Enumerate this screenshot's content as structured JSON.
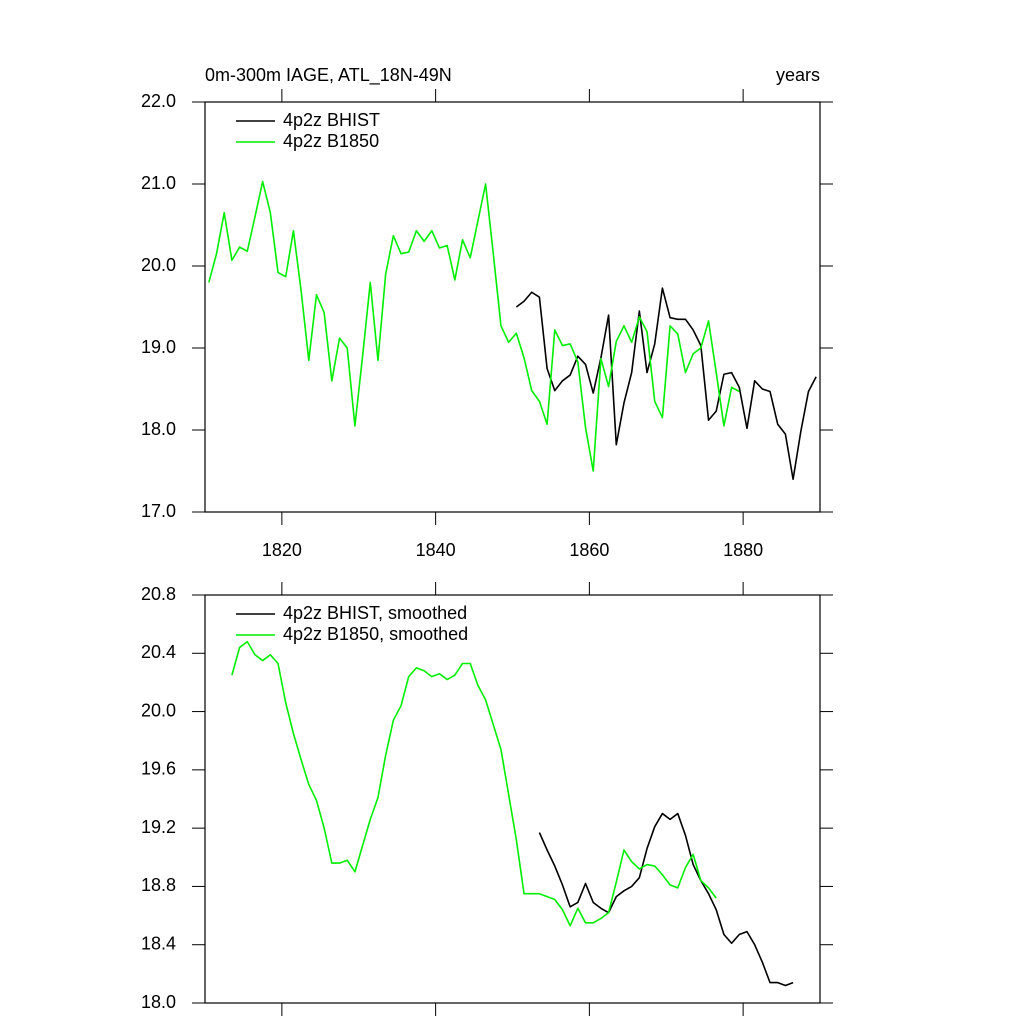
{
  "chart_data": [
    {
      "type": "line",
      "title": "0m-300m IAGE, ATL_18N-49N",
      "subtitle": "years",
      "x": [
        1810.5,
        1811.5,
        1812.5,
        1813.5,
        1814.5,
        1815.5,
        1816.5,
        1817.5,
        1818.5,
        1819.5,
        1820.5,
        1821.5,
        1822.5,
        1823.5,
        1824.5,
        1825.5,
        1826.5,
        1827.5,
        1828.5,
        1829.5,
        1830.5,
        1831.5,
        1832.5,
        1833.5,
        1834.5,
        1835.5,
        1836.5,
        1837.5,
        1838.5,
        1839.5,
        1840.5,
        1841.5,
        1842.5,
        1843.5,
        1844.5,
        1845.5,
        1846.5,
        1847.5,
        1848.5,
        1849.5,
        1850.5,
        1851.5,
        1852.5,
        1853.5,
        1854.5,
        1855.5,
        1856.5,
        1857.5,
        1858.5,
        1859.5,
        1860.5,
        1861.5,
        1862.5,
        1863.5,
        1864.5,
        1865.5,
        1866.5,
        1867.5,
        1868.5,
        1869.5,
        1870.5,
        1871.5,
        1872.5,
        1873.5,
        1874.5,
        1875.5,
        1876.5,
        1877.5,
        1878.5,
        1879.5,
        1880.5,
        1881.5,
        1882.5,
        1883.5,
        1884.5,
        1885.5,
        1886.5,
        1887.5,
        1888.5,
        1889.5
      ],
      "series": [
        {
          "name": "4p2z BHIST",
          "color": "#000000",
          "values": [
            null,
            null,
            null,
            null,
            null,
            null,
            null,
            null,
            null,
            null,
            null,
            null,
            null,
            null,
            null,
            null,
            null,
            null,
            null,
            null,
            null,
            null,
            null,
            null,
            null,
            null,
            null,
            null,
            null,
            null,
            null,
            null,
            null,
            null,
            null,
            null,
            null,
            null,
            null,
            null,
            19.5,
            19.57,
            19.68,
            19.62,
            18.75,
            18.48,
            18.6,
            18.67,
            18.9,
            18.8,
            18.45,
            18.88,
            19.4,
            17.82,
            18.33,
            18.7,
            19.45,
            18.7,
            19.05,
            19.73,
            19.37,
            19.35,
            19.35,
            19.22,
            19.03,
            18.12,
            18.23,
            18.68,
            18.7,
            18.52,
            18.02,
            18.6,
            18.5,
            18.47,
            18.07,
            17.95,
            17.4,
            17.98,
            18.47,
            18.65
          ]
        },
        {
          "name": "4p2z B1850",
          "color": "#00ee00",
          "values": [
            19.8,
            20.15,
            20.65,
            20.07,
            20.23,
            20.18,
            20.6,
            21.03,
            20.65,
            19.92,
            19.87,
            20.43,
            19.7,
            18.85,
            19.65,
            19.43,
            18.6,
            19.12,
            19.0,
            18.05,
            18.9,
            19.8,
            18.85,
            19.9,
            20.37,
            20.15,
            20.17,
            20.43,
            20.3,
            20.43,
            20.22,
            20.25,
            19.83,
            20.32,
            20.1,
            20.55,
            21.0,
            20.15,
            19.27,
            19.07,
            19.18,
            18.88,
            18.48,
            18.35,
            18.07,
            19.22,
            19.03,
            19.05,
            18.83,
            18.03,
            17.5,
            18.87,
            18.53,
            19.08,
            19.27,
            19.07,
            19.38,
            19.2,
            18.35,
            18.15,
            19.27,
            19.17,
            18.7,
            18.93,
            19.0,
            19.33,
            18.7,
            18.05,
            18.52,
            18.47,
            null,
            null,
            null,
            null,
            null,
            null,
            null,
            null,
            null,
            null
          ]
        }
      ],
      "xlim": [
        1810,
        1890
      ],
      "xticks": [
        1820,
        1840,
        1860,
        1880
      ],
      "show_xtick_labels": true,
      "ylim": [
        17,
        22
      ],
      "yticks": [
        {
          "value": 17,
          "label": "17.0"
        },
        {
          "value": 18,
          "label": "18.0"
        },
        {
          "value": 19,
          "label": "19.0"
        },
        {
          "value": 20,
          "label": "20.0"
        },
        {
          "value": 21,
          "label": "21.0"
        },
        {
          "value": 22,
          "label": "22.0"
        }
      ],
      "legend": "upper left"
    },
    {
      "type": "line",
      "x": [
        1810.5,
        1811.5,
        1812.5,
        1813.5,
        1814.5,
        1815.5,
        1816.5,
        1817.5,
        1818.5,
        1819.5,
        1820.5,
        1821.5,
        1822.5,
        1823.5,
        1824.5,
        1825.5,
        1826.5,
        1827.5,
        1828.5,
        1829.5,
        1830.5,
        1831.5,
        1832.5,
        1833.5,
        1834.5,
        1835.5,
        1836.5,
        1837.5,
        1838.5,
        1839.5,
        1840.5,
        1841.5,
        1842.5,
        1843.5,
        1844.5,
        1845.5,
        1846.5,
        1847.5,
        1848.5,
        1849.5,
        1850.5,
        1851.5,
        1852.5,
        1853.5,
        1854.5,
        1855.5,
        1856.5,
        1857.5,
        1858.5,
        1859.5,
        1860.5,
        1861.5,
        1862.5,
        1863.5,
        1864.5,
        1865.5,
        1866.5,
        1867.5,
        1868.5,
        1869.5,
        1870.5,
        1871.5,
        1872.5,
        1873.5,
        1874.5,
        1875.5,
        1876.5,
        1877.5,
        1878.5,
        1879.5,
        1880.5,
        1881.5,
        1882.5,
        1883.5,
        1884.5,
        1885.5,
        1886.5,
        1887.5,
        1888.5,
        1889.5
      ],
      "series": [
        {
          "name": "4p2z BHIST, smoothed",
          "color": "#000000",
          "values": [
            null,
            null,
            null,
            null,
            null,
            null,
            null,
            null,
            null,
            null,
            null,
            null,
            null,
            null,
            null,
            null,
            null,
            null,
            null,
            null,
            null,
            null,
            null,
            null,
            null,
            null,
            null,
            null,
            null,
            null,
            null,
            null,
            null,
            null,
            null,
            null,
            null,
            null,
            null,
            null,
            null,
            null,
            null,
            19.17,
            19.05,
            18.94,
            18.81,
            18.66,
            18.69,
            18.82,
            18.69,
            18.65,
            18.62,
            18.73,
            18.77,
            18.8,
            18.86,
            19.06,
            19.21,
            19.3,
            19.26,
            19.3,
            19.15,
            18.95,
            18.84,
            18.75,
            18.64,
            18.47,
            18.41,
            18.47,
            18.49,
            18.4,
            18.28,
            18.14,
            18.14,
            18.12,
            18.14,
            null,
            null,
            null
          ]
        },
        {
          "name": "4p2z B1850, smoothed",
          "color": "#00ee00",
          "values": [
            null,
            null,
            null,
            20.25,
            20.44,
            20.48,
            20.39,
            20.35,
            20.39,
            20.33,
            20.06,
            19.85,
            19.67,
            19.5,
            19.39,
            19.2,
            18.96,
            18.96,
            18.98,
            18.9,
            19.08,
            19.26,
            19.41,
            19.7,
            19.94,
            20.04,
            20.24,
            20.3,
            20.28,
            20.24,
            20.26,
            20.22,
            20.25,
            20.33,
            20.33,
            20.18,
            20.08,
            19.91,
            19.74,
            19.43,
            19.12,
            18.75,
            18.75,
            18.75,
            18.73,
            18.71,
            18.64,
            18.53,
            18.65,
            18.55,
            18.55,
            18.58,
            18.62,
            18.83,
            19.05,
            18.97,
            18.92,
            18.95,
            18.94,
            18.88,
            18.81,
            18.79,
            18.93,
            19.02,
            18.84,
            18.79,
            18.72,
            null,
            null,
            null,
            null,
            null,
            null,
            null,
            null,
            null,
            null,
            null,
            null,
            null
          ]
        }
      ],
      "xlim": [
        1810,
        1890
      ],
      "xticks": [
        1820,
        1840,
        1860,
        1880
      ],
      "show_xtick_labels": false,
      "ylim": [
        18,
        20.8
      ],
      "yticks": [
        {
          "value": 18,
          "label": "18.0"
        },
        {
          "value": 18.4,
          "label": "18.4"
        },
        {
          "value": 18.8,
          "label": "18.8"
        },
        {
          "value": 19.2,
          "label": "19.2"
        },
        {
          "value": 19.6,
          "label": "19.6"
        },
        {
          "value": 20,
          "label": "20.0"
        },
        {
          "value": 20.4,
          "label": "20.4"
        },
        {
          "value": 20.8,
          "label": "20.8"
        }
      ],
      "legend": "upper left"
    }
  ]
}
